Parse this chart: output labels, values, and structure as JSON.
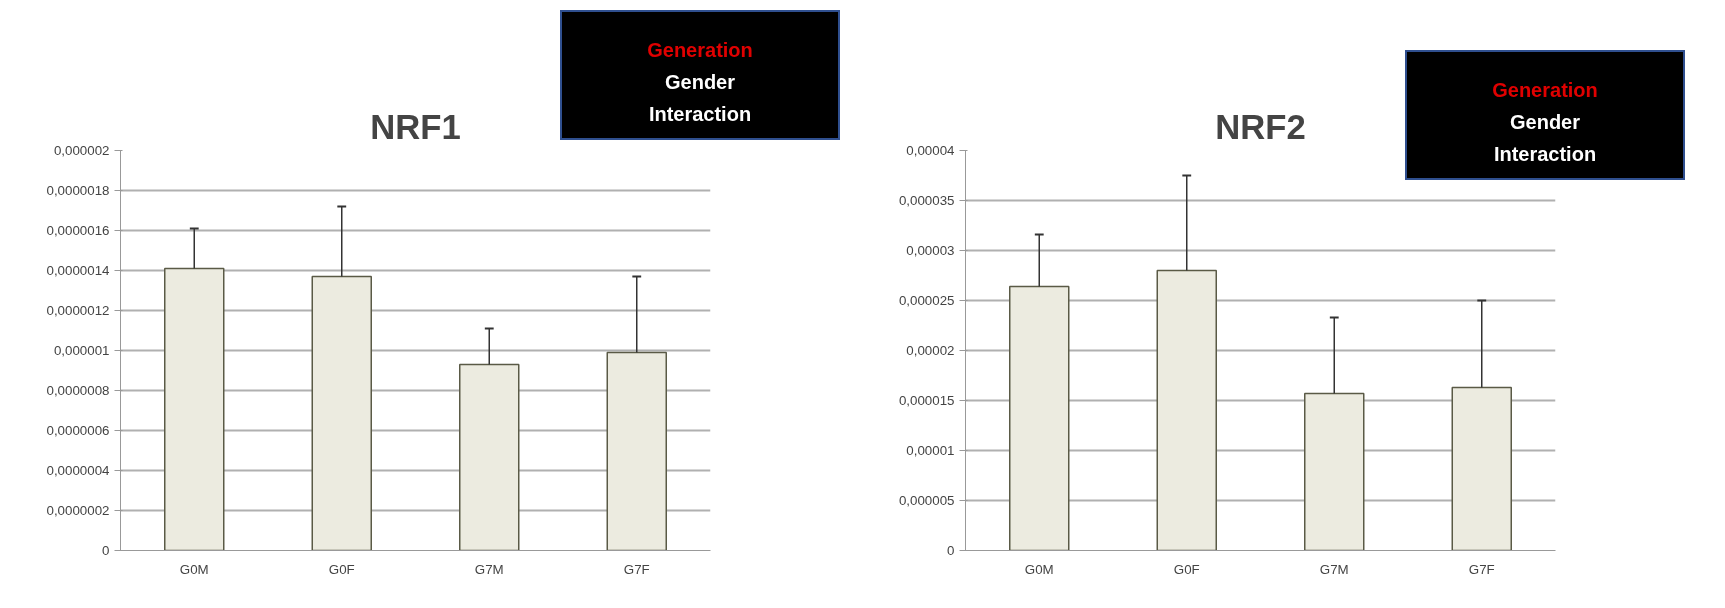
{
  "chart_data": [
    {
      "type": "bar",
      "title": "NRF1",
      "categories": [
        "G0M",
        "G0F",
        "G7M",
        "G7F"
      ],
      "series": [
        {
          "color": "#ecebe0",
          "values": [
            1.41e-06,
            1.37e-06,
            9.3e-07,
            9.9e-07
          ],
          "errors": [
            [
              1.41e-06,
              1.61e-06
            ],
            [
              1.37e-06,
              1.72e-06
            ],
            [
              9.3e-07,
              1.11e-06
            ],
            [
              9.9e-07,
              1.37e-06
            ]
          ]
        }
      ],
      "ylim": [
        0,
        2e-06
      ],
      "yticks": [
        0,
        {
          "value": 2e-07,
          "label": "0,0000002"
        },
        {
          "value": 4e-07,
          "label": "0,0000004"
        },
        {
          "value": 6e-07,
          "label": "0,0000006"
        },
        {
          "value": 8e-07,
          "label": "0,0000008"
        },
        {
          "value": 1e-06,
          "label": "0,000001"
        },
        {
          "value": 1.2e-06,
          "label": "0,0000012"
        },
        {
          "value": 1.4e-06,
          "label": "0,0000014"
        },
        {
          "value": 1.6e-06,
          "label": "0,0000016"
        },
        {
          "value": 1.8e-06,
          "label": "0,0000018"
        },
        {
          "value": 2e-06,
          "label": "0,000002"
        }
      ],
      "grid": "y",
      "annotations": [
        "Generation",
        "Gender",
        "Interaction"
      ]
    },
    {
      "type": "bar",
      "title": "NRF2",
      "categories": [
        "G0M",
        "G0F",
        "G7M",
        "G7F"
      ],
      "series": [
        {
          "color": "#ecebe0",
          "values": [
            2.64e-05,
            2.8e-05,
            1.57e-05,
            1.63e-05
          ],
          "errors": [
            [
              2.64e-05,
              3.16e-05
            ],
            [
              2.8e-05,
              3.75e-05
            ],
            [
              1.57e-05,
              2.33e-05
            ],
            [
              1.63e-05,
              2.5e-05
            ]
          ]
        }
      ],
      "ylim": [
        0,
        4e-05
      ],
      "yticks": [
        0,
        {
          "value": 5e-06,
          "label": "0,000005"
        },
        {
          "value": 1e-05,
          "label": "0,00001"
        },
        {
          "value": 1.5e-05,
          "label": "0,000015"
        },
        {
          "value": 2e-05,
          "label": "0,00002"
        },
        {
          "value": 2.5e-05,
          "label": "0,000025"
        },
        {
          "value": 3e-05,
          "label": "0,00003"
        },
        {
          "value": 3.5e-05,
          "label": "0,000035"
        },
        {
          "value": 4e-05,
          "label": "0,00004"
        }
      ],
      "grid": "y",
      "annotations": [
        "Generation",
        "Gender",
        "Interaction"
      ]
    }
  ]
}
